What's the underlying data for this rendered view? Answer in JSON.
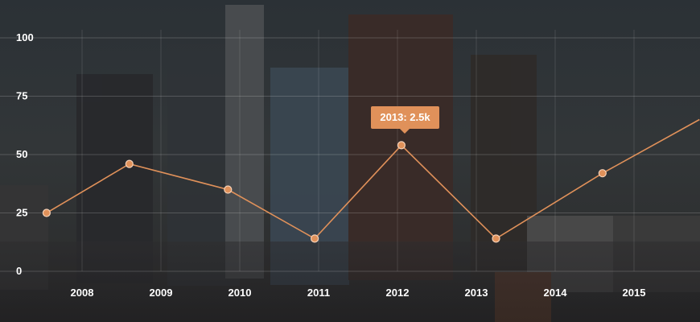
{
  "chart_data": {
    "type": "line",
    "categories": [
      "2008",
      "2009",
      "2010",
      "2011",
      "2012",
      "2013",
      "2014",
      "2015"
    ],
    "y_ticks": [
      "0",
      "25",
      "50",
      "75",
      "100"
    ],
    "ylim": [
      0,
      100
    ],
    "grid": true,
    "series": [
      {
        "x": [
          2007.55,
          2008.6,
          2009.85,
          2010.95,
          2012.05,
          2013.25,
          2014.6,
          2015.83
        ],
        "values": [
          25,
          46,
          35,
          14,
          54,
          14,
          42,
          65
        ],
        "color": "#e0915a"
      }
    ],
    "tooltip": {
      "label": "2013: 2.5k",
      "point_index": 4
    },
    "title": "",
    "xlabel": "",
    "ylabel": ""
  },
  "colors": {
    "line": "#e0915a",
    "tooltip_bg": "#e0915a",
    "text": "#ffffff"
  }
}
